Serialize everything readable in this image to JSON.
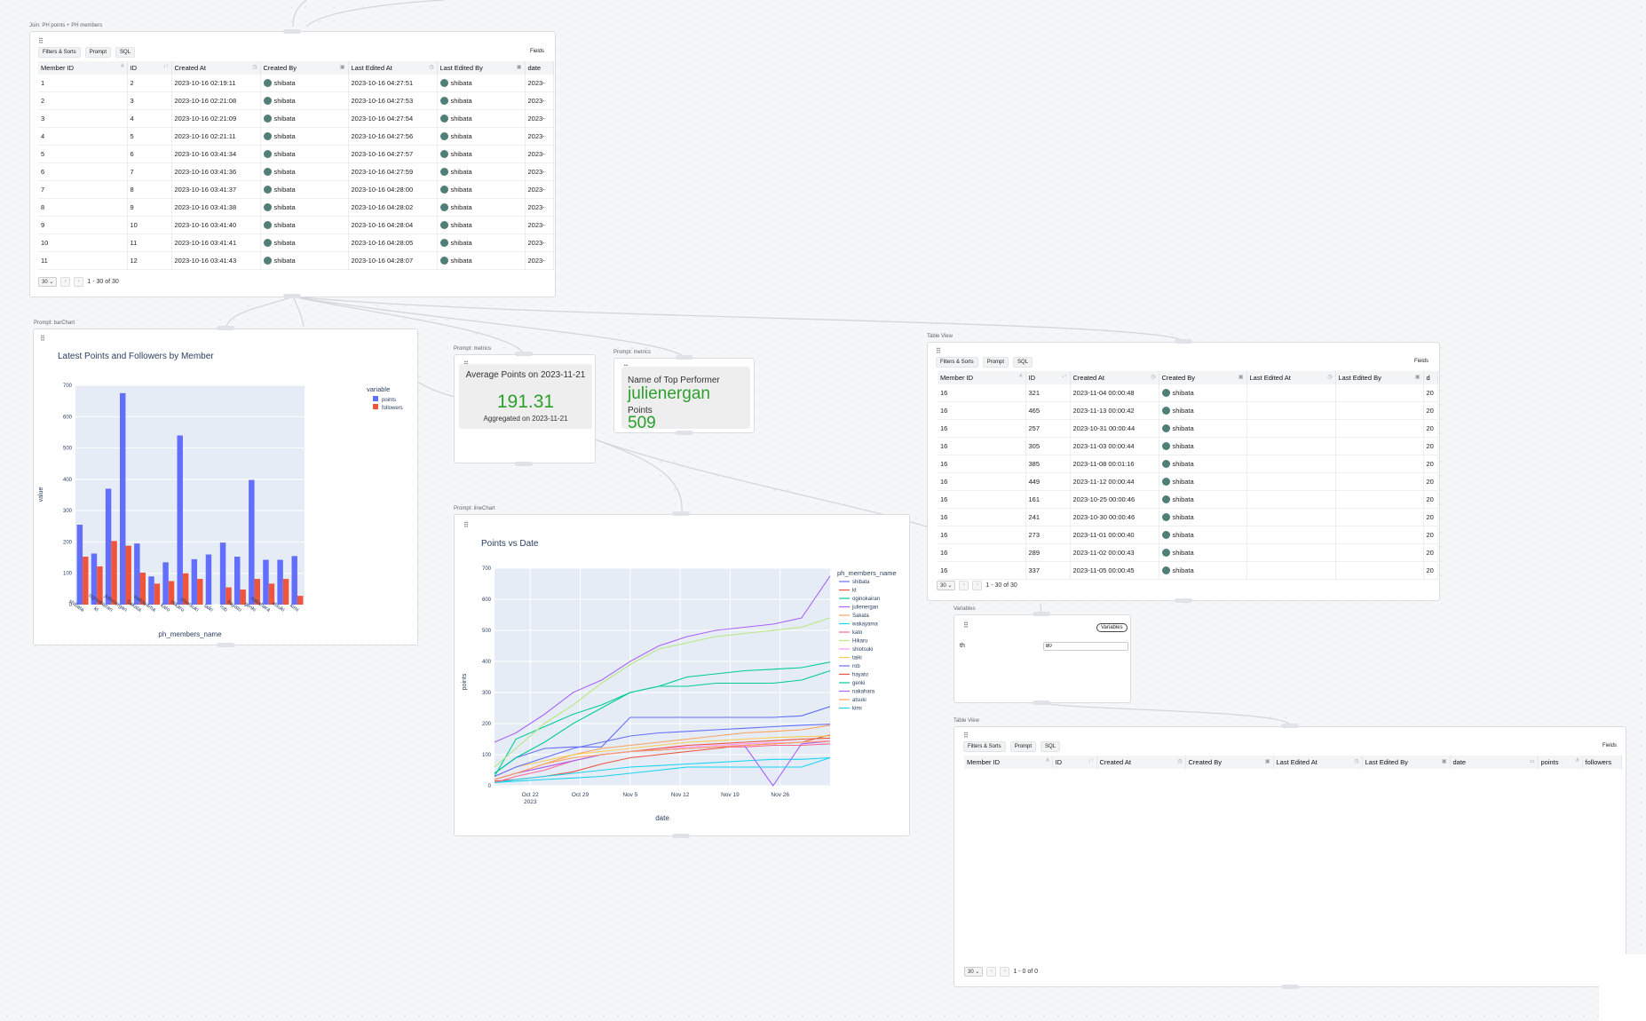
{
  "join_node": {
    "title": "Join: PH points + PH members",
    "toolbar": {
      "filters": "Filters & Sorts",
      "prompt": "Prompt",
      "sql": "SQL",
      "fields": "Fields"
    },
    "columns": [
      "Member ID",
      "ID",
      "Created At",
      "Created By",
      "Last Edited At",
      "Last Edited By",
      "date"
    ],
    "rows": [
      [
        "1",
        "2",
        "2023-10-16 02:19:11",
        "shibata",
        "2023-10-16 04:27:51",
        "shibata",
        "2023-"
      ],
      [
        "2",
        "3",
        "2023-10-16 02:21:08",
        "shibata",
        "2023-10-16 04:27:53",
        "shibata",
        "2023-"
      ],
      [
        "3",
        "4",
        "2023-10-16 02:21:09",
        "shibata",
        "2023-10-16 04:27:54",
        "shibata",
        "2023-"
      ],
      [
        "4",
        "5",
        "2023-10-16 02:21:11",
        "shibata",
        "2023-10-16 04:27:56",
        "shibata",
        "2023-"
      ],
      [
        "5",
        "6",
        "2023-10-16 03:41:34",
        "shibata",
        "2023-10-16 04:27:57",
        "shibata",
        "2023-"
      ],
      [
        "6",
        "7",
        "2023-10-16 03:41:36",
        "shibata",
        "2023-10-16 04:27:59",
        "shibata",
        "2023-"
      ],
      [
        "7",
        "8",
        "2023-10-16 03:41:37",
        "shibata",
        "2023-10-16 04:28:00",
        "shibata",
        "2023-"
      ],
      [
        "8",
        "9",
        "2023-10-16 03:41:38",
        "shibata",
        "2023-10-16 04:28:02",
        "shibata",
        "2023-"
      ],
      [
        "9",
        "10",
        "2023-10-16 03:41:40",
        "shibata",
        "2023-10-16 04:28:04",
        "shibata",
        "2023-"
      ],
      [
        "10",
        "11",
        "2023-10-16 03:41:41",
        "shibata",
        "2023-10-16 04:28:05",
        "shibata",
        "2023-"
      ],
      [
        "11",
        "12",
        "2023-10-16 03:41:43",
        "shibata",
        "2023-10-16 04:28:07",
        "shibata",
        "2023-"
      ]
    ],
    "page_size": "30",
    "page_info": "1 - 30 of 30"
  },
  "bar_node": {
    "title": "Prompt: barChart",
    "chart_title": "Latest Points and Followers by Member",
    "legend_title": "variable",
    "legend": [
      "points",
      "followers"
    ],
    "xlabel": "ph_members_name",
    "ylabel": "value",
    "yticks": [
      "0",
      "100",
      "200",
      "300",
      "400",
      "500",
      "600",
      "700"
    ]
  },
  "metric1": {
    "title": "Prompt: metrics",
    "label": "Average Points on 2023-11-21",
    "value": "191.31",
    "sub": "Aggregated on 2023-11-21"
  },
  "metric2": {
    "title": "Prompt: metrics",
    "label1": "Name of Top Performer",
    "value1": "julienergan",
    "label2": "Points",
    "value2": "509"
  },
  "line_node": {
    "title": "Prompt: lineChart",
    "chart_title": "Points vs Date",
    "legend_title": "ph_members_name",
    "xlabel": "date",
    "ylabel": "points",
    "yticks": [
      "0",
      "100",
      "200",
      "300",
      "400",
      "500",
      "600",
      "700"
    ],
    "xticks": [
      "Oct 22",
      "Oct 29",
      "Nov 5",
      "Nov 12",
      "Nov 19",
      "Nov 26"
    ],
    "xtick_sub": "2023"
  },
  "table_view": {
    "title": "Table View",
    "toolbar": {
      "filters": "Filters & Sorts",
      "prompt": "Prompt",
      "sql": "SQL",
      "fields": "Fields"
    },
    "columns": [
      "Member ID",
      "ID",
      "Created At",
      "Created By",
      "Last Edited At",
      "Last Edited By",
      "d"
    ],
    "rows": [
      [
        "16",
        "321",
        "2023-11-04 00:00:48",
        "shibata",
        "",
        "",
        "20"
      ],
      [
        "16",
        "465",
        "2023-11-13 00:00:42",
        "shibata",
        "",
        "",
        "20"
      ],
      [
        "16",
        "257",
        "2023-10-31 00:00:44",
        "shibata",
        "",
        "",
        "20"
      ],
      [
        "16",
        "305",
        "2023-11-03 00:00:44",
        "shibata",
        "",
        "",
        "20"
      ],
      [
        "16",
        "385",
        "2023-11-08 00:01:16",
        "shibata",
        "",
        "",
        "20"
      ],
      [
        "16",
        "449",
        "2023-11-12 00:00:44",
        "shibata",
        "",
        "",
        "20"
      ],
      [
        "16",
        "161",
        "2023-10-25 00:00:46",
        "shibata",
        "",
        "",
        "20"
      ],
      [
        "16",
        "241",
        "2023-10-30 00:00:46",
        "shibata",
        "",
        "",
        "20"
      ],
      [
        "16",
        "273",
        "2023-11-01 00:00:40",
        "shibata",
        "",
        "",
        "20"
      ],
      [
        "16",
        "289",
        "2023-11-02 00:00:43",
        "shibata",
        "",
        "",
        "20"
      ],
      [
        "16",
        "337",
        "2023-11-05 00:00:45",
        "shibata",
        "",
        "",
        "20"
      ]
    ],
    "page_size": "30",
    "page_info": "1 - 30 of 30"
  },
  "variables_node": {
    "title": "Variables",
    "button": "Variables",
    "var_name": "th",
    "var_value": "80"
  },
  "table_view2": {
    "title": "Table View",
    "toolbar": {
      "filters": "Filters & Sorts",
      "prompt": "Prompt",
      "sql": "SQL",
      "fields": "Fields"
    },
    "columns": [
      "Member ID",
      "ID",
      "Created At",
      "Created By",
      "Last Edited At",
      "Last Edited By",
      "date",
      "points",
      "followers"
    ],
    "page_size": "30",
    "page_info": "1 - 0 of 0"
  },
  "chart_data": [
    {
      "type": "bar",
      "title": "Latest Points and Followers by Member",
      "xlabel": "ph_members_name",
      "ylabel": "value",
      "ylim": [
        0,
        700
      ],
      "categories": [
        "shibata",
        "kt",
        "oginokairan",
        "julienergan",
        "Sakata",
        "wakayama",
        "kato",
        "Hikaru",
        "shiotsuki",
        "taiki",
        "rob",
        "hayato",
        "genki",
        "nakahara",
        "atsuki",
        "kimi"
      ],
      "series": [
        {
          "name": "points",
          "color": "#636efa",
          "values": [
            255,
            163,
            370,
            675,
            195,
            90,
            135,
            540,
            145,
            160,
            198,
            153,
            398,
            143,
            143,
            155
          ]
        },
        {
          "name": "followers",
          "color": "#ef553b",
          "values": [
            153,
            122,
            203,
            188,
            102,
            67,
            75,
            100,
            82,
            0,
            55,
            48,
            82,
            67,
            82,
            28
          ]
        }
      ],
      "legend": "right"
    },
    {
      "type": "line",
      "title": "Points vs Date",
      "xlabel": "date",
      "ylabel": "points",
      "ylim": [
        0,
        700
      ],
      "x": [
        "2023-10-17",
        "2023-10-20",
        "2023-10-24",
        "2023-10-28",
        "2023-11-01",
        "2023-11-05",
        "2023-11-09",
        "2023-11-13",
        "2023-11-17",
        "2023-11-21",
        "2023-11-25",
        "2023-11-29",
        "2023-12-03"
      ],
      "legend": "right",
      "series": [
        {
          "name": "shibata",
          "color": "#636efa",
          "values": [
            40,
            90,
            120,
            125,
            125,
            220,
            220,
            220,
            220,
            220,
            220,
            225,
            255
          ]
        },
        {
          "name": "kt",
          "color": "#ef553b",
          "values": [
            15,
            20,
            30,
            45,
            70,
            90,
            100,
            110,
            120,
            130,
            135,
            140,
            163
          ]
        },
        {
          "name": "oginokairan",
          "color": "#00cc96",
          "values": [
            30,
            150,
            190,
            230,
            260,
            300,
            320,
            320,
            330,
            330,
            330,
            340,
            370
          ]
        },
        {
          "name": "julienergan",
          "color": "#ab63fa",
          "values": [
            140,
            170,
            230,
            300,
            340,
            400,
            450,
            480,
            500,
            510,
            520,
            540,
            675
          ]
        },
        {
          "name": "Sakata",
          "color": "#ffa15a",
          "values": [
            20,
            40,
            70,
            100,
            120,
            130,
            140,
            150,
            160,
            170,
            175,
            180,
            195
          ]
        },
        {
          "name": "wakayama",
          "color": "#19d3f3",
          "values": [
            10,
            20,
            30,
            40,
            50,
            60,
            65,
            70,
            75,
            80,
            85,
            85,
            90
          ]
        },
        {
          "name": "kato",
          "color": "#ff6692",
          "values": [
            10,
            30,
            50,
            80,
            100,
            110,
            115,
            120,
            125,
            125,
            130,
            130,
            135
          ]
        },
        {
          "name": "Hikaru",
          "color": "#b6e880",
          "values": [
            60,
            120,
            200,
            260,
            330,
            390,
            440,
            460,
            480,
            490,
            500,
            510,
            540
          ]
        },
        {
          "name": "shiotsuki",
          "color": "#ff97ff",
          "values": [
            20,
            40,
            60,
            80,
            100,
            110,
            120,
            125,
            130,
            135,
            138,
            140,
            145
          ]
        },
        {
          "name": "taiki",
          "color": "#fecb52",
          "values": [
            30,
            60,
            80,
            100,
            110,
            120,
            130,
            140,
            145,
            150,
            155,
            158,
            160
          ]
        },
        {
          "name": "rob",
          "color": "#636efa",
          "values": [
            30,
            60,
            90,
            120,
            140,
            160,
            170,
            175,
            180,
            185,
            190,
            195,
            198
          ]
        },
        {
          "name": "hayato",
          "color": "#ef553b",
          "values": [
            20,
            40,
            60,
            80,
            100,
            110,
            120,
            130,
            135,
            140,
            145,
            150,
            153
          ]
        },
        {
          "name": "genki",
          "color": "#00cc96",
          "values": [
            40,
            90,
            140,
            200,
            250,
            300,
            320,
            350,
            360,
            370,
            375,
            380,
            398
          ]
        },
        {
          "name": "nakahara",
          "color": "#ab63fa",
          "values": [
            20,
            40,
            60,
            80,
            100,
            110,
            115,
            120,
            125,
            130,
            0,
            135,
            143
          ]
        },
        {
          "name": "atsuki",
          "color": "#ffa15a",
          "values": [
            20,
            40,
            70,
            90,
            100,
            110,
            115,
            120,
            125,
            130,
            135,
            140,
            143
          ]
        },
        {
          "name": "kimi",
          "color": "#19d3f3",
          "values": [
            10,
            15,
            20,
            25,
            30,
            40,
            50,
            60,
            60,
            60,
            60,
            60,
            90
          ]
        }
      ]
    }
  ]
}
